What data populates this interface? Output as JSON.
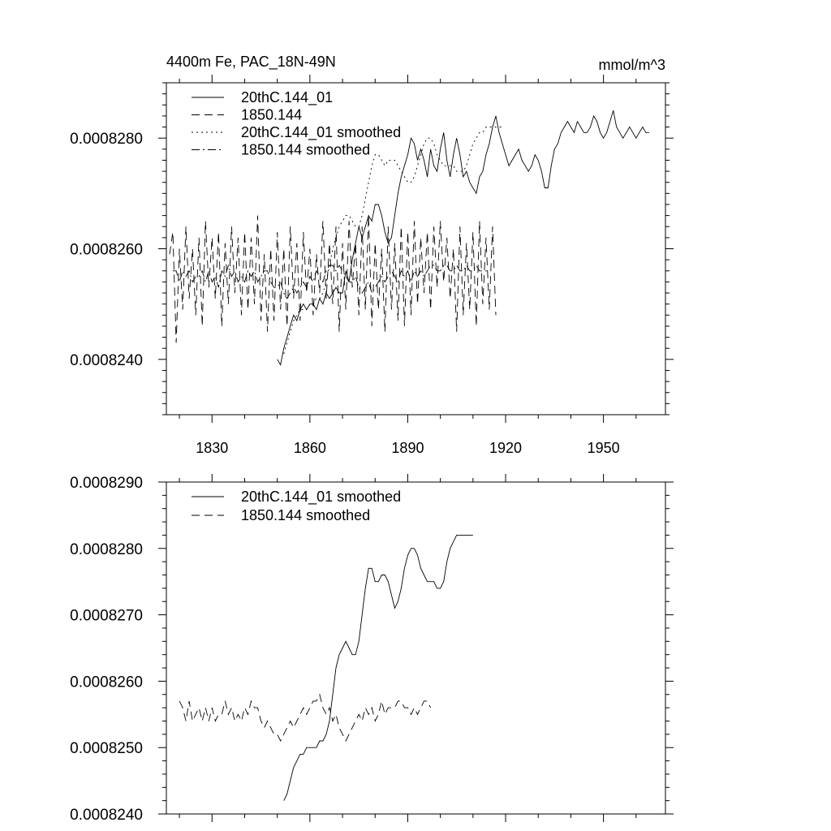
{
  "chart_data": [
    {
      "type": "line",
      "title": "4400m Fe, PAC_18N-49N",
      "units": "mmol/m^3",
      "xlim": [
        1816,
        1969
      ],
      "ylim": [
        0.000823,
        0.000829
      ],
      "xticks": [
        1830,
        1860,
        1890,
        1920,
        1950
      ],
      "xtick_labels": [
        "1830",
        "1860",
        "1890",
        "1920",
        "1950"
      ],
      "yticks": [
        0.000824,
        0.000826,
        0.000828
      ],
      "ytick_labels": [
        "0.0008240",
        "0.0008260",
        "0.0008280"
      ],
      "legend": [
        "20thC.144_01",
        "1850.144",
        "20thC.144_01 smoothed",
        "1850.144 smoothed"
      ],
      "series": [
        {
          "name": "20thC.144_01",
          "style": "solid",
          "x0": 1850,
          "values": [
            0.000824,
            0.0008239,
            0.0008242,
            0.0008244,
            0.0008246,
            0.0008248,
            0.0008247,
            0.0008249,
            0.000825,
            0.0008249,
            0.000825,
            0.000825,
            0.0008249,
            0.0008251,
            0.000825,
            0.0008252,
            0.0008251,
            0.0008252,
            0.0008253,
            0.0008252,
            0.0008252,
            0.0008256,
            0.0008254,
            0.0008258,
            0.0008261,
            0.0008264,
            0.0008262,
            0.0008264,
            0.0008266,
            0.0008265,
            0.0008268,
            0.0008268,
            0.0008266,
            0.0008263,
            0.0008261,
            0.0008262,
            0.0008266,
            0.000827,
            0.0008273,
            0.0008275,
            0.0008277,
            0.000828,
            0.0008279,
            0.0008276,
            0.0008278,
            0.0008276,
            0.0008273,
            0.0008278,
            0.0008275,
            0.0008274,
            0.0008278,
            0.0008281,
            0.0008276,
            0.0008273,
            0.0008277,
            0.000828,
            0.0008277,
            0.0008273,
            0.0008274,
            0.0008272,
            0.0008271,
            0.000827,
            0.0008273,
            0.0008274,
            0.0008277,
            0.0008279,
            0.0008282,
            0.0008284,
            0.0008281,
            0.0008279,
            0.0008277,
            0.0008275,
            0.0008276,
            0.0008277,
            0.0008278,
            0.0008276,
            0.0008275,
            0.0008274,
            0.0008275,
            0.0008277,
            0.0008276,
            0.0008274,
            0.0008271,
            0.0008271,
            0.0008275,
            0.0008278,
            0.0008279,
            0.0008281,
            0.0008282,
            0.0008283,
            0.0008282,
            0.0008281,
            0.0008283,
            0.0008282,
            0.0008281,
            0.0008281,
            0.0008282,
            0.0008284,
            0.0008283,
            0.0008281,
            0.000828,
            0.0008281,
            0.0008283,
            0.0008285,
            0.0008282,
            0.0008281,
            0.000828,
            0.0008281,
            0.0008282,
            0.0008281,
            0.000828,
            0.0008281,
            0.0008282,
            0.0008281,
            0.0008281
          ]
        },
        {
          "name": "1850.144",
          "style": "dashed",
          "x0": 1817,
          "values": [
            0.0008259,
            0.0008263,
            0.0008243,
            0.000826,
            0.0008249,
            0.0008264,
            0.0008251,
            0.000826,
            0.0008248,
            0.0008262,
            0.0008246,
            0.0008265,
            0.0008253,
            0.0008262,
            0.0008251,
            0.0008263,
            0.0008246,
            0.0008261,
            0.000825,
            0.0008264,
            0.0008252,
            0.0008262,
            0.0008248,
            0.0008263,
            0.0008249,
            0.0008262,
            0.000825,
            0.0008266,
            0.0008247,
            0.0008259,
            0.0008245,
            0.000826,
            0.0008247,
            0.0008263,
            0.0008249,
            0.000826,
            0.0008246,
            0.0008264,
            0.0008251,
            0.0008261,
            0.0008247,
            0.0008263,
            0.0008252,
            0.000826,
            0.0008248,
            0.0008259,
            0.0008252,
            0.0008265,
            0.0008251,
            0.0008261,
            0.000825,
            0.0008264,
            0.0008245,
            0.0008261,
            0.0008249,
            0.0008265,
            0.0008253,
            0.0008261,
            0.0008248,
            0.0008264,
            0.0008249,
            0.0008266,
            0.0008246,
            0.0008261,
            0.0008249,
            0.000826,
            0.0008245,
            0.0008264,
            0.0008249,
            0.0008261,
            0.0008247,
            0.0008264,
            0.0008246,
            0.0008263,
            0.0008248,
            0.0008265,
            0.000825,
            0.0008262,
            0.0008252,
            0.0008263,
            0.0008249,
            0.0008264,
            0.0008253,
            0.0008265,
            0.0008254,
            0.0008262,
            0.0008251,
            0.000826,
            0.0008245,
            0.0008264,
            0.0008248,
            0.0008261,
            0.0008249,
            0.0008263,
            0.0008246,
            0.0008265,
            0.000825,
            0.0008262,
            0.0008249,
            0.0008264,
            0.0008248
          ]
        },
        {
          "name": "20thC.144_01 smoothed",
          "style": "dotted",
          "x0": 1852,
          "values": [
            0.0008241,
            0.0008243,
            0.0008245,
            0.0008247,
            0.0008248,
            0.0008249,
            0.0008249,
            0.0008249,
            0.000825,
            0.000825,
            0.0008251,
            0.0008251,
            0.0008252,
            0.0008254,
            0.0008257,
            0.000826,
            0.0008262,
            0.0008264,
            0.0008265,
            0.0008266,
            0.0008266,
            0.0008265,
            0.0008264,
            0.0008264,
            0.0008266,
            0.0008269,
            0.0008272,
            0.0008275,
            0.0008277,
            0.0008277,
            0.0008276,
            0.0008275,
            0.0008276,
            0.0008276,
            0.0008276,
            0.0008275,
            0.0008274,
            0.0008273,
            0.0008272,
            0.0008272,
            0.0008273,
            0.0008275,
            0.0008277,
            0.0008279,
            0.000828,
            0.000828,
            0.0008279,
            0.0008277,
            0.0008276,
            0.0008275,
            0.0008275,
            0.0008275,
            0.0008275,
            0.0008274,
            0.0008274,
            0.0008274,
            0.0008275,
            0.0008277,
            0.0008279,
            0.000828,
            0.0008281,
            0.0008281,
            0.0008282,
            0.0008282,
            0.0008282,
            0.0008282,
            0.0008282,
            0.0008282
          ]
        },
        {
          "name": "1850.144 smoothed",
          "style": "dashdot",
          "x0": 1818,
          "values": [
            0.0008256,
            0.0008256,
            0.0008254,
            0.0008256,
            0.0008255,
            0.0008256,
            0.0008254,
            0.0008255,
            0.0008255,
            0.0008256,
            0.0008254,
            0.0008256,
            0.0008254,
            0.0008255,
            0.0008253,
            0.0008256,
            0.0008255,
            0.0008257,
            0.0008255,
            0.0008256,
            0.0008254,
            0.0008255,
            0.0008254,
            0.0008256,
            0.0008255,
            0.0008256,
            0.0008254,
            0.0008255,
            0.0008256,
            0.0008256,
            0.0008254,
            0.0008253,
            0.0008253,
            0.0008254,
            0.0008252,
            0.0008251,
            0.0008252,
            0.0008253,
            0.0008252,
            0.0008253,
            0.0008254,
            0.0008253,
            0.0008255,
            0.0008254,
            0.0008256,
            0.0008255,
            0.0008254,
            0.0008256,
            0.0008257,
            0.0008257,
            0.0008256,
            0.0008257,
            0.0008256,
            0.0008255,
            0.0008254,
            0.0008254,
            0.0008255,
            0.0008253,
            0.0008252,
            0.0008253,
            0.0008254,
            0.0008252,
            0.0008253,
            0.0008254,
            0.0008255,
            0.0008254,
            0.0008255,
            0.0008256,
            0.0008255,
            0.0008254,
            0.0008256,
            0.0008255,
            0.0008256,
            0.0008254,
            0.0008256,
            0.0008255,
            0.0008256,
            0.0008255,
            0.0008256,
            0.0008257,
            0.0008257,
            0.0008256,
            0.0008256,
            0.0008257,
            0.0008257,
            0.0008256,
            0.0008256,
            0.0008257,
            0.0008256,
            0.0008256,
            0.0008257,
            0.0008256,
            0.0008256,
            0.0008257,
            0.0008256,
            0.0008256,
            0.0008256,
            0.0008256
          ]
        }
      ]
    },
    {
      "type": "line",
      "title": "",
      "xlim": [
        1816,
        1969
      ],
      "ylim": [
        0.000824,
        0.000829
      ],
      "xticks": [
        1830,
        1860,
        1890,
        1920,
        1950
      ],
      "yticks": [
        0.000824,
        0.000825,
        0.000826,
        0.000827,
        0.000828,
        0.000829
      ],
      "ytick_labels": [
        "0.0008240",
        "0.0008250",
        "0.0008260",
        "0.0008270",
        "0.0008280",
        "0.0008290"
      ],
      "legend": [
        "20thC.144_01 smoothed",
        "1850.144 smoothed"
      ],
      "series": [
        {
          "name": "20thC.144_01 smoothed",
          "style": "solid",
          "x0": 1852,
          "values": [
            0.0008242,
            0.0008243,
            0.0008245,
            0.0008247,
            0.0008248,
            0.0008249,
            0.0008249,
            0.000825,
            0.000825,
            0.000825,
            0.000825,
            0.0008251,
            0.0008251,
            0.0008252,
            0.0008254,
            0.0008258,
            0.0008262,
            0.0008264,
            0.0008265,
            0.0008266,
            0.0008265,
            0.0008264,
            0.0008264,
            0.0008266,
            0.000827,
            0.0008274,
            0.0008277,
            0.0008277,
            0.0008275,
            0.0008275,
            0.0008276,
            0.0008276,
            0.0008275,
            0.0008273,
            0.0008271,
            0.0008272,
            0.0008274,
            0.0008277,
            0.0008279,
            0.000828,
            0.000828,
            0.0008279,
            0.0008277,
            0.0008276,
            0.0008275,
            0.0008275,
            0.0008275,
            0.0008274,
            0.0008274,
            0.0008275,
            0.0008278,
            0.000828,
            0.0008281,
            0.0008282,
            0.0008282,
            0.0008282,
            0.0008282,
            0.0008282,
            0.0008282
          ]
        },
        {
          "name": "1850.144 smoothed",
          "style": "dashed",
          "x0": 1820,
          "values": [
            0.0008257,
            0.0008256,
            0.0008254,
            0.0008257,
            0.0008254,
            0.0008255,
            0.0008256,
            0.0008254,
            0.0008256,
            0.0008254,
            0.0008256,
            0.0008254,
            0.0008255,
            0.0008255,
            0.0008257,
            0.0008255,
            0.0008256,
            0.0008254,
            0.0008255,
            0.0008254,
            0.0008256,
            0.0008255,
            0.0008257,
            0.0008256,
            0.0008256,
            0.0008254,
            0.0008253,
            0.0008254,
            0.0008253,
            0.0008252,
            0.0008252,
            0.0008251,
            0.0008252,
            0.0008253,
            0.0008254,
            0.0008253,
            0.0008254,
            0.0008255,
            0.0008256,
            0.0008255,
            0.0008256,
            0.0008257,
            0.0008257,
            0.0008258,
            0.0008256,
            0.0008255,
            0.0008256,
            0.0008254,
            0.0008255,
            0.0008253,
            0.0008252,
            0.0008251,
            0.0008252,
            0.0008253,
            0.0008254,
            0.0008255,
            0.0008254,
            0.0008256,
            0.0008255,
            0.0008256,
            0.0008254,
            0.0008255,
            0.0008257,
            0.0008255,
            0.0008256,
            0.0008256,
            0.0008256,
            0.0008257,
            0.0008257,
            0.0008256,
            0.0008256,
            0.0008255,
            0.0008256,
            0.0008255,
            0.0008256,
            0.0008257,
            0.0008257,
            0.0008256
          ]
        }
      ]
    }
  ]
}
